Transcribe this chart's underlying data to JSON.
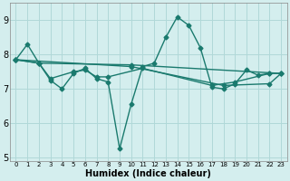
{
  "xlabel": "Humidex (Indice chaleur)",
  "background_color": "#d4eeee",
  "grid_color": "#b0d8d8",
  "line_color": "#1a7a6e",
  "xlim": [
    -0.5,
    23.5
  ],
  "ylim": [
    4.9,
    9.5
  ],
  "yticks": [
    5,
    6,
    7,
    8,
    9
  ],
  "xtick_labels": [
    "0",
    "1",
    "2",
    "3",
    "4",
    "5",
    "6",
    "7",
    "8",
    "9",
    "10",
    "11",
    "12",
    "13",
    "14",
    "15",
    "16",
    "17",
    "18",
    "19",
    "20",
    "21",
    "22",
    "23"
  ],
  "lines": [
    {
      "x": [
        0,
        1,
        2,
        3,
        4,
        5,
        6,
        7,
        8,
        9,
        10,
        11,
        12,
        13,
        14,
        15,
        16,
        17,
        18,
        19,
        20,
        21,
        22,
        23
      ],
      "y": [
        7.85,
        8.3,
        7.75,
        7.25,
        7.0,
        7.45,
        7.6,
        7.3,
        7.2,
        5.25,
        6.55,
        7.65,
        7.75,
        8.5,
        9.1,
        8.85,
        8.2,
        7.05,
        7.0,
        7.15,
        7.55,
        7.4,
        7.45,
        7.45
      ]
    },
    {
      "x": [
        0,
        2,
        3,
        5,
        6,
        7,
        8,
        11,
        17,
        19,
        22
      ],
      "y": [
        7.85,
        7.75,
        7.3,
        7.5,
        7.55,
        7.35,
        7.35,
        7.6,
        7.1,
        7.2,
        7.45
      ]
    },
    {
      "x": [
        0,
        2,
        10,
        23
      ],
      "y": [
        7.85,
        7.75,
        7.7,
        7.45
      ]
    },
    {
      "x": [
        0,
        10,
        18,
        22,
        23
      ],
      "y": [
        7.85,
        7.65,
        7.1,
        7.15,
        7.45
      ]
    }
  ],
  "marker": "D",
  "markersize": 2.5,
  "linewidth": 1.0
}
